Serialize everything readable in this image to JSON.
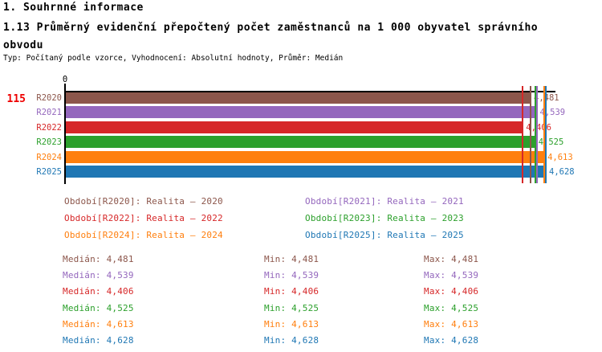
{
  "header": {
    "section_title": "1. Souhrnné informace",
    "chart_title": "1.13 Průměrný evidenční přepočtený počet zaměstnanců na 1 000 obyvatel správního obvodu",
    "meta_line": "Typ: Počítaný podle vzorce, Vyhodnocení: Absolutní hodnoty, Průměr: Medián"
  },
  "chart_data": {
    "type": "bar",
    "orientation": "horizontal",
    "title": "1.13 Průměrný evidenční přepočtený počet zaměstnanců na 1 000 obyvatel správního obvodu",
    "row_count_label": "115",
    "axis_zero_label": "0",
    "xlim": [
      0,
      4.73
    ],
    "grid": false,
    "legend_position": "below",
    "categories": [
      "R2020",
      "R2021",
      "R2022",
      "R2023",
      "R2024",
      "R2025"
    ],
    "series": [
      {
        "name": "R2020",
        "legend": "Období[R2020]: Realita – 2020",
        "value": 4.481,
        "value_label": "4,481",
        "median": 4.481,
        "color": "#8C564B"
      },
      {
        "name": "R2021",
        "legend": "Období[R2021]: Realita – 2021",
        "value": 4.539,
        "value_label": "4,539",
        "median": 4.539,
        "color": "#9467BD"
      },
      {
        "name": "R2022",
        "legend": "Období[R2022]: Realita – 2022",
        "value": 4.406,
        "value_label": "4,406",
        "median": 4.406,
        "color": "#D62728"
      },
      {
        "name": "R2023",
        "legend": "Období[R2023]: Realita – 2023",
        "value": 4.525,
        "value_label": "4,525",
        "median": 4.525,
        "color": "#2CA02C"
      },
      {
        "name": "R2024",
        "legend": "Období[R2024]: Realita – 2024",
        "value": 4.613,
        "value_label": "4,613",
        "median": 4.613,
        "color": "#FF7F0E"
      },
      {
        "name": "R2025",
        "legend": "Období[R2025]: Realita – 2025",
        "value": 4.628,
        "value_label": "4,628",
        "median": 4.628,
        "color": "#1F77B4"
      }
    ]
  },
  "stats": {
    "median_label": "Medián",
    "min_label": "Min",
    "max_label": "Max",
    "rows": [
      {
        "median": "4,481",
        "min": "4,481",
        "max": "4,481",
        "color": "#8C564B"
      },
      {
        "median": "4,539",
        "min": "4,539",
        "max": "4,539",
        "color": "#9467BD"
      },
      {
        "median": "4,406",
        "min": "4,406",
        "max": "4,406",
        "color": "#D62728"
      },
      {
        "median": "4,525",
        "min": "4,525",
        "max": "4,525",
        "color": "#2CA02C"
      },
      {
        "median": "4,613",
        "min": "4,613",
        "max": "4,613",
        "color": "#FF7F0E"
      },
      {
        "median": "4,628",
        "min": "4,628",
        "max": "4,628",
        "color": "#1F77B4"
      }
    ]
  },
  "colors": {
    "count_red": "#EE0000",
    "axis": "#000000",
    "background": "#FFFFFF"
  }
}
